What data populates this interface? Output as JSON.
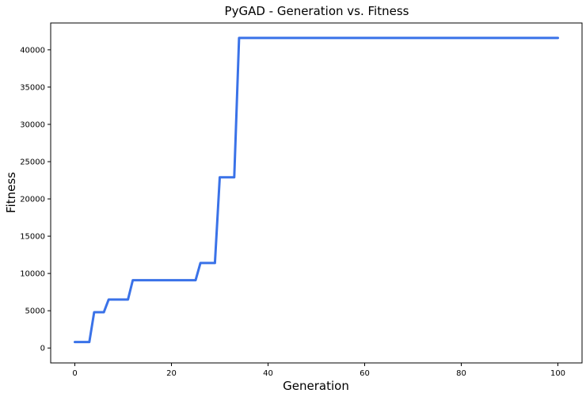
{
  "chart_data": {
    "type": "line",
    "title": "PyGAD - Generation vs. Fitness",
    "xlabel": "Generation",
    "ylabel": "Fitness",
    "xlim": [
      -5,
      105
    ],
    "ylim": [
      -2000,
      43600
    ],
    "xticks": [
      0,
      20,
      40,
      60,
      80,
      100
    ],
    "yticks": [
      0,
      5000,
      10000,
      15000,
      20000,
      25000,
      30000,
      35000,
      40000
    ],
    "grid": false,
    "line_color": "#3A72E8",
    "x": [
      0,
      3,
      4,
      6,
      7,
      11,
      12,
      25,
      26,
      29,
      30,
      33,
      34,
      100
    ],
    "y": [
      800,
      800,
      4800,
      4800,
      6500,
      6500,
      9100,
      9100,
      11400,
      11400,
      22900,
      22900,
      41600,
      41600
    ]
  }
}
